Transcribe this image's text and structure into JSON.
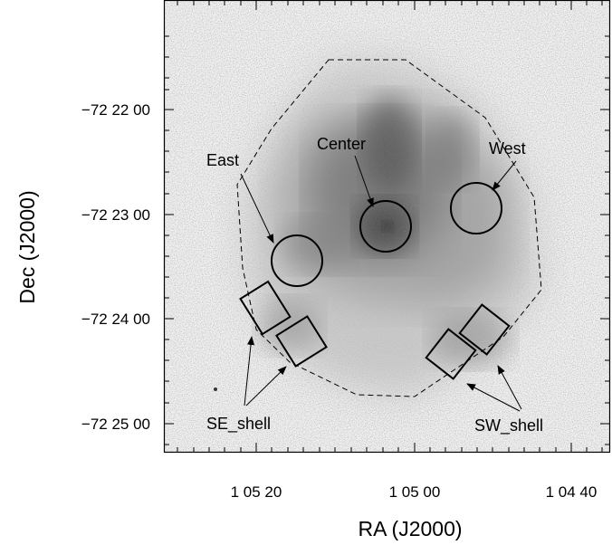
{
  "axes": {
    "xlabel": "RA (J2000)",
    "ylabel": "Dec (J2000)",
    "x_ticks": [
      "1 05 20",
      "1 05 00",
      "1 04 40"
    ],
    "y_ticks": [
      "−72 22 00",
      "−72 23 00",
      "−72 24 00",
      "−72 25 00"
    ]
  },
  "regions": {
    "east": "East",
    "center": "Center",
    "west": "West",
    "se_shell": "SE_shell",
    "sw_shell": "SW_shell"
  },
  "colors": {
    "frame": "#000000",
    "image_background": "#efefef",
    "emission": "#5a5a5a",
    "region_outline": "#000000"
  }
}
